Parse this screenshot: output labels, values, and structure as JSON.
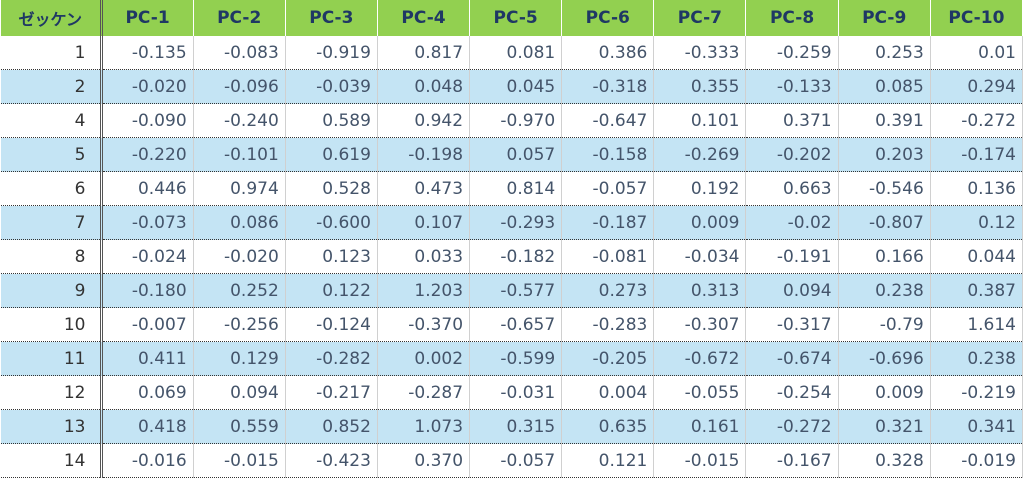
{
  "table": {
    "header": [
      "ゼッケン",
      "PC-1",
      "PC-2",
      "PC-3",
      "PC-4",
      "PC-5",
      "PC-6",
      "PC-7",
      "PC-8",
      "PC-9",
      "PC-10"
    ],
    "rows": [
      [
        "1",
        "-0.135",
        "-0.083",
        "-0.919",
        "0.817",
        "0.081",
        "0.386",
        "-0.333",
        "-0.259",
        "0.253",
        "0.01"
      ],
      [
        "2",
        "-0.020",
        "-0.096",
        "-0.039",
        "0.048",
        "0.045",
        "-0.318",
        "0.355",
        "-0.133",
        "0.085",
        "0.294"
      ],
      [
        "4",
        "-0.090",
        "-0.240",
        "0.589",
        "0.942",
        "-0.970",
        "-0.647",
        "0.101",
        "0.371",
        "0.391",
        "-0.272"
      ],
      [
        "5",
        "-0.220",
        "-0.101",
        "0.619",
        "-0.198",
        "0.057",
        "-0.158",
        "-0.269",
        "-0.202",
        "0.203",
        "-0.174"
      ],
      [
        "6",
        "0.446",
        "0.974",
        "0.528",
        "0.473",
        "0.814",
        "-0.057",
        "0.192",
        "0.663",
        "-0.546",
        "0.136"
      ],
      [
        "7",
        "-0.073",
        "0.086",
        "-0.600",
        "0.107",
        "-0.293",
        "-0.187",
        "0.009",
        "-0.02",
        "-0.807",
        "0.12"
      ],
      [
        "8",
        "-0.024",
        "-0.020",
        "0.123",
        "0.033",
        "-0.182",
        "-0.081",
        "-0.034",
        "-0.191",
        "0.166",
        "0.044"
      ],
      [
        "9",
        "-0.180",
        "0.252",
        "0.122",
        "1.203",
        "-0.577",
        "0.273",
        "0.313",
        "0.094",
        "0.238",
        "0.387"
      ],
      [
        "10",
        "-0.007",
        "-0.256",
        "-0.124",
        "-0.370",
        "-0.657",
        "-0.283",
        "-0.307",
        "-0.317",
        "-0.79",
        "1.614"
      ],
      [
        "11",
        "0.411",
        "0.129",
        "-0.282",
        "0.002",
        "-0.599",
        "-0.205",
        "-0.672",
        "-0.674",
        "-0.696",
        "0.238"
      ],
      [
        "12",
        "0.069",
        "0.094",
        "-0.217",
        "-0.287",
        "-0.031",
        "0.004",
        "-0.055",
        "-0.254",
        "0.009",
        "-0.219"
      ],
      [
        "13",
        "0.418",
        "0.559",
        "0.852",
        "1.073",
        "0.315",
        "0.635",
        "0.161",
        "-0.272",
        "0.321",
        "0.341"
      ],
      [
        "14",
        "-0.016",
        "-0.015",
        "-0.423",
        "0.370",
        "-0.057",
        "0.121",
        "-0.015",
        "-0.167",
        "0.328",
        "-0.019"
      ]
    ]
  }
}
